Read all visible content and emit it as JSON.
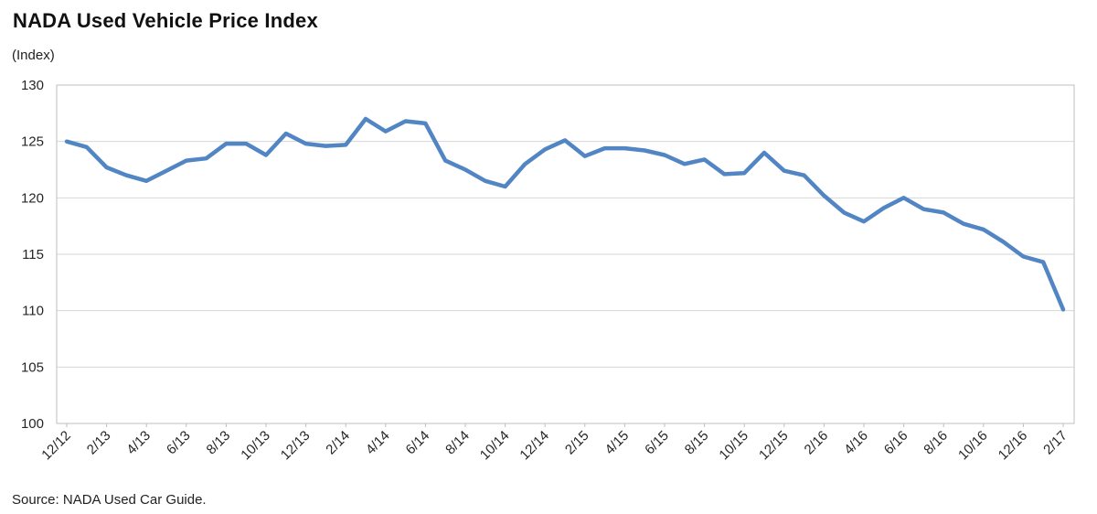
{
  "page": {
    "title": "NADA Used Vehicle Price Index",
    "source": "Source: NADA Used Car Guide."
  },
  "chart_data": {
    "type": "line",
    "title": "NADA Used Vehicle Price Index",
    "ylabel": "(Index)",
    "source": "Source: NADA Used Car Guide.",
    "ylim": [
      100,
      130
    ],
    "y_ticks": [
      130,
      125,
      120,
      115,
      110,
      105,
      100
    ],
    "grid": true,
    "legend": "none",
    "line_color": "#5285c4",
    "gridline_color": "#d6d6d6",
    "axis_color": "#bfbfbf",
    "x_tick_labels": [
      "12/12",
      "2/13",
      "4/13",
      "6/13",
      "8/13",
      "10/13",
      "12/13",
      "2/14",
      "4/14",
      "6/14",
      "8/14",
      "10/14",
      "12/14",
      "2/15",
      "4/15",
      "6/15",
      "8/15",
      "10/15",
      "12/15",
      "2/16",
      "4/16",
      "6/16",
      "8/16",
      "10/16",
      "12/16",
      "2/17"
    ],
    "x": [
      "12/12",
      "1/13",
      "2/13",
      "3/13",
      "4/13",
      "5/13",
      "6/13",
      "7/13",
      "8/13",
      "9/13",
      "10/13",
      "11/13",
      "12/13",
      "1/14",
      "2/14",
      "3/14",
      "4/14",
      "5/14",
      "6/14",
      "7/14",
      "8/14",
      "9/14",
      "10/14",
      "11/14",
      "12/14",
      "1/15",
      "2/15",
      "3/15",
      "4/15",
      "5/15",
      "6/15",
      "7/15",
      "8/15",
      "9/15",
      "10/15",
      "11/15",
      "12/15",
      "1/16",
      "2/16",
      "3/16",
      "4/16",
      "5/16",
      "6/16",
      "7/16",
      "8/16",
      "9/16",
      "10/16",
      "11/16",
      "12/16",
      "1/17",
      "2/17"
    ],
    "values": [
      125.0,
      124.5,
      122.7,
      122.0,
      121.5,
      122.4,
      123.3,
      123.5,
      124.8,
      124.8,
      123.8,
      125.7,
      124.8,
      124.6,
      124.7,
      127.0,
      125.9,
      126.8,
      126.6,
      123.3,
      122.5,
      121.5,
      121.0,
      123.0,
      124.3,
      125.1,
      123.7,
      124.4,
      124.4,
      124.2,
      123.8,
      123.0,
      123.4,
      122.1,
      122.2,
      124.0,
      122.4,
      122.0,
      120.2,
      118.7,
      117.9,
      119.1,
      120.0,
      119.0,
      118.7,
      117.7,
      117.2,
      116.1,
      114.8,
      114.3,
      110.1
    ]
  }
}
